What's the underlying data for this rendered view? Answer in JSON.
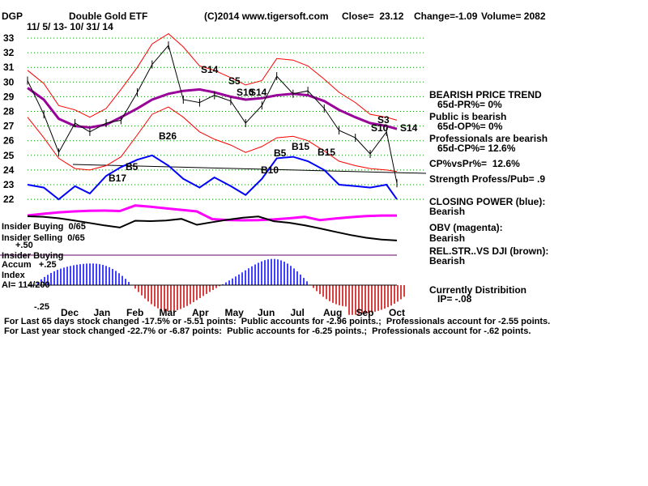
{
  "header": {
    "ticker": "DGP",
    "name": "Double Gold ETF",
    "copyright": "(C)2014 www.tigersoft.com",
    "close": "Close=  23.12",
    "change": "Change=-1.09",
    "volume": "Volume= 2082",
    "date_range": "11/ 5/ 13- 10/ 31/ 14"
  },
  "colors": {
    "price_bars": "#000000",
    "bands": "#ff0000",
    "moving_avg": "#990099",
    "closing_power": "#0000ff",
    "obv": "#ff00ff",
    "rel_str": "#000000",
    "accum_pos": "#0000ff",
    "accum_neg": "#cc0000",
    "grid": "#009900"
  },
  "panel_labels": {
    "insider_buying_1": "Insider Buying  0/65",
    "insider_selling": "Insider Selling  0/65",
    "scale_plus50": "+.50",
    "insider_buying_2": "Insider Buying",
    "accum_index": "Accum   +.25",
    "index": "Index",
    "ai": "AI= 114/200",
    "minus25": "-.25"
  },
  "right_panel": [
    {
      "text": "BEARISH PRICE TREND"
    },
    {
      "text": "   65d-PR%= 0%"
    },
    {
      "text": "Public is bearish"
    },
    {
      "text": "   65d-OP%= 0%"
    },
    {
      "text": "Professionals are bearish"
    },
    {
      "text": "   65d-CP%= 12.6%"
    },
    {
      "text": "CP%vsPr%=  12.6%"
    },
    {
      "text": "Strength Profess/Pub= .9"
    },
    {
      "text": "CLOSING POWER (blue):"
    },
    {
      "text": "Bearish"
    },
    {
      "text": "OBV (magenta):"
    },
    {
      "text": "Bearish"
    },
    {
      "text": "REL.STR..VS DJI (brown):"
    },
    {
      "text": "Bearish"
    },
    {
      "text": "Currently Distribition"
    },
    {
      "text": "   IP= -.08"
    }
  ],
  "footer": {
    "line1": "For Last 65 days stock changed -17.5% or -5.51 points:  Public accounts for -2.96 points.;  Professionals account for -2.55 points.",
    "line2": "For Last year stock changed -22.7% or -6.87 points:  Public accounts for -6.25 points.;  Professionals account for -.62 points."
  },
  "chart_data": {
    "type": "line",
    "y_ticks": [
      33,
      32,
      31,
      30,
      29,
      28,
      27,
      26,
      25,
      24,
      23,
      22
    ],
    "ylim": [
      21.5,
      33.5
    ],
    "x_ticks": [
      "Dec",
      "Jan",
      "Feb",
      "Mar",
      "Apr",
      "May",
      "Jun",
      "Jul",
      "Aug",
      "Sep",
      "Oct"
    ],
    "x": [
      0,
      11,
      21,
      32,
      42,
      53,
      63,
      74,
      84,
      95,
      105,
      116,
      126,
      137,
      147,
      158,
      168,
      179,
      189,
      200,
      210,
      221,
      231,
      242,
      249
    ],
    "series": [
      {
        "values": [
          30.1,
          27.8,
          25.2,
          27.2,
          26.6,
          27.2,
          27.4,
          29.3,
          31.2,
          32.5,
          28.8,
          28.6,
          29.1,
          28.7,
          27.2,
          28.4,
          30.4,
          29.2,
          29.4,
          28.2,
          26.7,
          26.2,
          25.1,
          26.6,
          23.1
        ]
      },
      {
        "values": [
          29.6,
          28.8,
          27.5,
          27.0,
          26.9,
          27.1,
          27.6,
          28.2,
          28.8,
          29.2,
          29.4,
          29.5,
          29.3,
          29.0,
          28.8,
          28.9,
          29.1,
          29.2,
          29.1,
          28.7,
          28.1,
          27.6,
          27.2,
          27.0,
          26.8
        ]
      },
      {
        "values": [
          30.8,
          29.9,
          28.4,
          28.1,
          27.6,
          28.2,
          29.5,
          31.0,
          32.6,
          33.3,
          32.4,
          31.1,
          30.8,
          30.3,
          29.8,
          30.1,
          31.6,
          31.5,
          31.1,
          30.2,
          29.3,
          28.6,
          27.8,
          27.6,
          27.4
        ]
      },
      {
        "values": [
          27.6,
          26.2,
          24.8,
          24.1,
          24.0,
          24.3,
          24.9,
          26.4,
          27.8,
          28.3,
          27.6,
          26.6,
          26.1,
          25.7,
          25.2,
          25.6,
          26.2,
          26.3,
          26.0,
          25.3,
          24.6,
          24.3,
          24.1,
          24.0,
          23.9
        ]
      },
      {
        "values": [
          23.0,
          22.8,
          22.0,
          22.9,
          22.4,
          23.6,
          24.2,
          24.7,
          25.0,
          24.3,
          23.4,
          22.8,
          23.5,
          22.9,
          22.3,
          23.4,
          24.8,
          24.9,
          24.6,
          24.0,
          23.0,
          22.9,
          22.8,
          23.0,
          22.0
        ]
      }
    ],
    "annotations": [
      "S14",
      "S5",
      "S10",
      "S14",
      "B26",
      "B5",
      "B17",
      "B10",
      "B15",
      "S3",
      "S10",
      "S14",
      "B15",
      "B5"
    ]
  }
}
